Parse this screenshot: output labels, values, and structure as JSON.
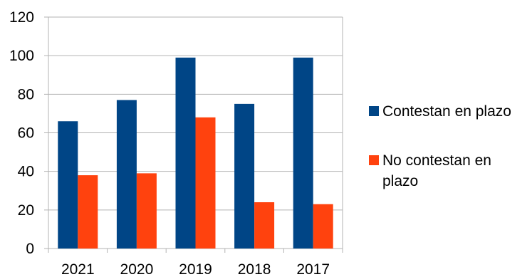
{
  "chart_data": {
    "type": "bar",
    "categories": [
      "2021",
      "2020",
      "2019",
      "2018",
      "2017"
    ],
    "series": [
      {
        "name": "Contestan en plazo",
        "color": "#004586",
        "values": [
          66,
          77,
          99,
          75,
          99
        ]
      },
      {
        "name": "No contestan en plazo",
        "color": "#ff420e",
        "values": [
          38,
          39,
          68,
          24,
          23
        ]
      }
    ],
    "ylim": [
      0,
      120
    ],
    "yticks": [
      "0",
      "20",
      "40",
      "60",
      "80",
      "100",
      "120"
    ],
    "grid": true,
    "legend": "right"
  }
}
